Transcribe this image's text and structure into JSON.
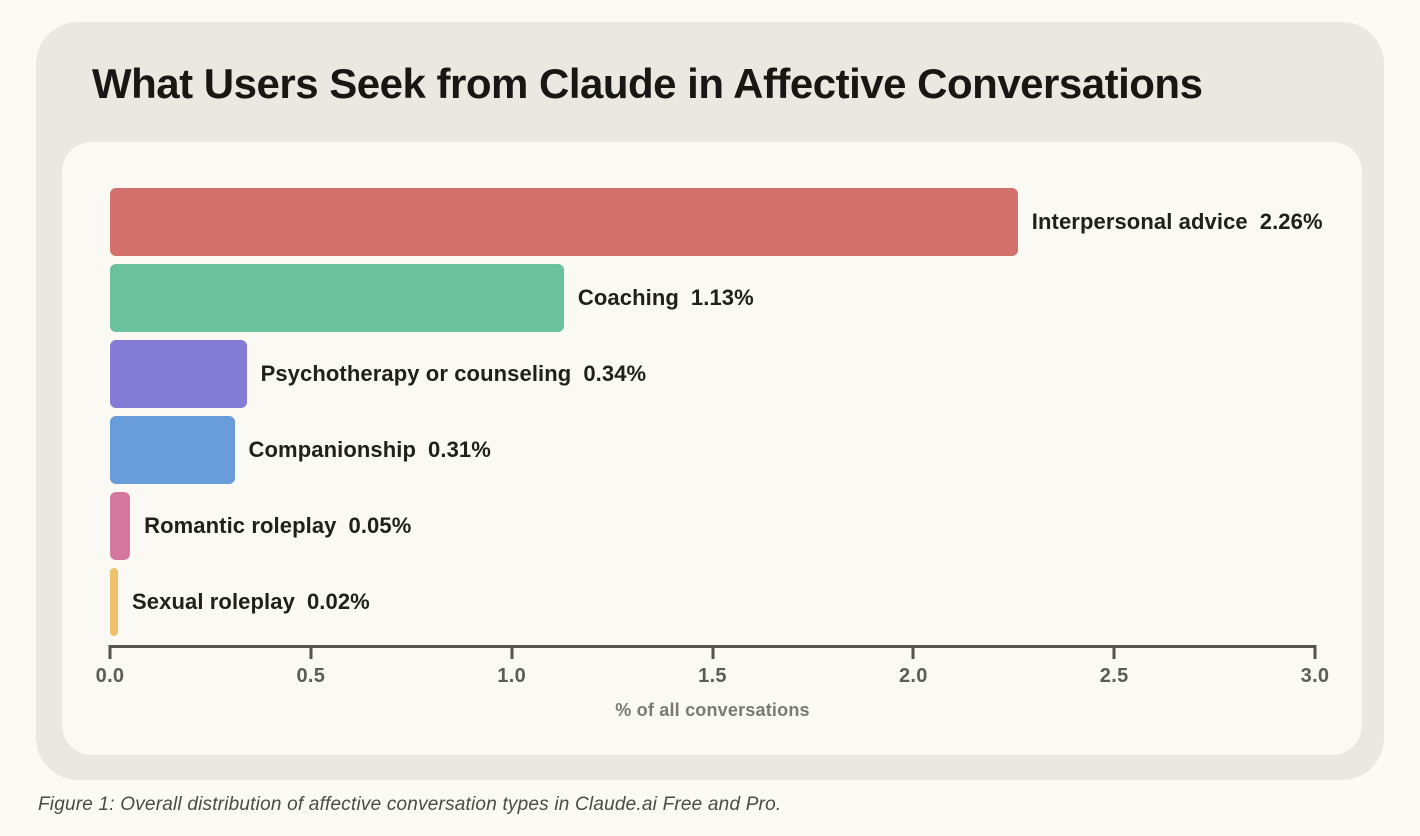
{
  "page": {
    "title": "What Users Seek from Claude in Affective Conversations",
    "caption": "Figure 1: Overall distribution of affective conversation types in Claude.ai Free and Pro."
  },
  "chart_data": {
    "type": "bar",
    "orientation": "horizontal",
    "title": "What Users Seek from Claude in Affective Conversations",
    "xlabel": "% of all conversations",
    "xlim": [
      0.0,
      3.0
    ],
    "xticks": [
      0.0,
      0.5,
      1.0,
      1.5,
      2.0,
      2.5,
      3.0
    ],
    "xtick_labels": [
      "0.0",
      "0.5",
      "1.0",
      "1.5",
      "2.0",
      "2.5",
      "3.0"
    ],
    "grid": false,
    "legend": false,
    "categories": [
      "Interpersonal advice",
      "Coaching",
      "Psychotherapy or counseling",
      "Companionship",
      "Romantic roleplay",
      "Sexual roleplay"
    ],
    "values": [
      2.26,
      1.13,
      0.34,
      0.31,
      0.05,
      0.02
    ],
    "value_labels": [
      "2.26%",
      "1.13%",
      "0.34%",
      "0.31%",
      "0.05%",
      "0.02%"
    ],
    "bar_colors": [
      "#d5716c",
      "#6bc19b",
      "#837bd6",
      "#699cdb",
      "#d4789f",
      "#eec269"
    ]
  },
  "colors": {
    "page_background": "#fbfaf5",
    "card_background": "#eae8e1",
    "panel_background": "#fbf9f3",
    "title_text": "#181714",
    "bar_label_text": "#21201d",
    "axis": "#55544f",
    "tick_label_text": "#5d5c56",
    "axis_title_text": "#7a7974",
    "caption_text": "#4b4a45"
  }
}
